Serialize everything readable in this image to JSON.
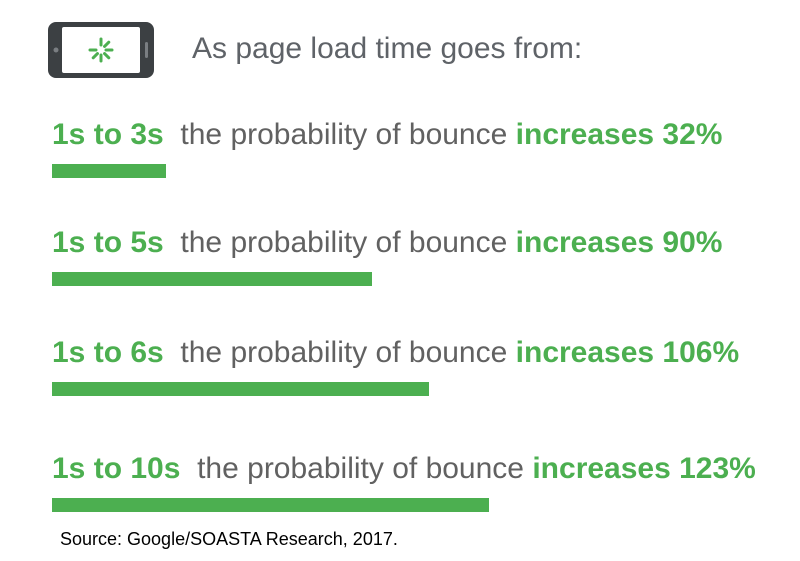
{
  "header": {
    "title": "As page load time goes from:",
    "icon": "phone-loading-icon"
  },
  "colors": {
    "accent": "#4caf50",
    "text": "#616161",
    "phone": "#3c4043"
  },
  "chart_data": {
    "type": "bar",
    "orientation": "horizontal",
    "title": "",
    "categories": [
      "1s to 3s",
      "1s to 5s",
      "1s to 6s",
      "1s to 10s"
    ],
    "values": [
      32,
      90,
      106,
      123
    ],
    "rows": [
      {
        "range": "1s to 3s",
        "middle": "the probability of bounce",
        "increase": "increases 32%",
        "value": 32
      },
      {
        "range": "1s to 5s",
        "middle": "the probability of bounce",
        "increase": "increases 90%",
        "value": 90
      },
      {
        "range": "1s to 6s",
        "middle": "the probability of bounce",
        "increase": "increases 106%",
        "value": 106
      },
      {
        "range": "1s to 10s",
        "middle": "the probability of bounce",
        "increase": "increases 123%",
        "value": 123
      }
    ],
    "xlabel": "",
    "ylabel": "",
    "xlim": [
      0,
      123
    ],
    "grid": false
  },
  "source": "Source: Google/SOASTA Research, 2017."
}
